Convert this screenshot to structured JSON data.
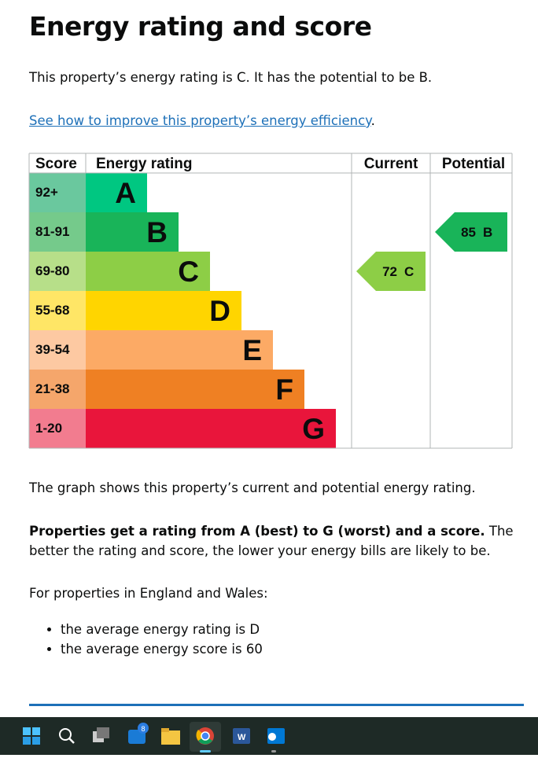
{
  "heading": "Energy rating and score",
  "intro": "This property’s energy rating is C. It has the potential to be B.",
  "link": {
    "text": "See how to improve this property’s energy efficiency",
    "suffix": "."
  },
  "epc": {
    "headers": [
      "Score",
      "Energy rating",
      "Current",
      "Potential"
    ],
    "bands": [
      {
        "range": "92+",
        "letter": "A",
        "color": "#00c781",
        "score_color": "#6ac89e"
      },
      {
        "range": "81-91",
        "letter": "B",
        "color": "#19b459",
        "score_color": "#75ca8b"
      },
      {
        "range": "69-80",
        "letter": "C",
        "color": "#8dce46",
        "score_color": "#b7df89"
      },
      {
        "range": "55-68",
        "letter": "D",
        "color": "#ffd500",
        "score_color": "#ffe666"
      },
      {
        "range": "39-54",
        "letter": "E",
        "color": "#fcaa65",
        "score_color": "#fdc9a2"
      },
      {
        "range": "21-38",
        "letter": "F",
        "color": "#ef8023",
        "score_color": "#f5a66b"
      },
      {
        "range": "1-20",
        "letter": "G",
        "color": "#e9153b",
        "score_color": "#f27c8f"
      }
    ],
    "current": {
      "score": "72",
      "letter": "C"
    },
    "potential": {
      "score": "85",
      "letter": "B"
    }
  },
  "graph_note": "The graph shows this property’s current and potential energy rating.",
  "ratings_note": {
    "bold": "Properties get a rating from A (best) to G (worst) and a score.",
    "rest": " The better the rating and score, the lower your energy bills are likely to be."
  },
  "average_intro": "For properties in England and Wales:",
  "averages": [
    "the average energy rating is D",
    "the average energy score is 60"
  ],
  "taskbar": {
    "badge": "8"
  }
}
